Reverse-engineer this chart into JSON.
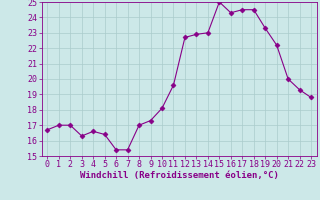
{
  "x": [
    0,
    1,
    2,
    3,
    4,
    5,
    6,
    7,
    8,
    9,
    10,
    11,
    12,
    13,
    14,
    15,
    16,
    17,
    18,
    19,
    20,
    21,
    22,
    23
  ],
  "y": [
    16.7,
    17.0,
    17.0,
    16.3,
    16.6,
    16.4,
    15.4,
    15.4,
    17.0,
    17.3,
    18.1,
    19.6,
    22.7,
    22.9,
    23.0,
    25.0,
    24.3,
    24.5,
    24.5,
    23.3,
    22.2,
    20.0,
    19.3,
    18.8
  ],
  "line_color": "#880088",
  "marker": "D",
  "marker_size": 2.5,
  "bg_color": "#cce8e8",
  "grid_color": "#aacccc",
  "xlabel": "Windchill (Refroidissement éolien,°C)",
  "xlabel_color": "#880088",
  "xlabel_fontsize": 6.5,
  "tick_color": "#880088",
  "tick_fontsize": 6.0,
  "ylim": [
    15,
    25
  ],
  "xlim": [
    -0.5,
    23.5
  ],
  "yticks": [
    15,
    16,
    17,
    18,
    19,
    20,
    21,
    22,
    23,
    24,
    25
  ],
  "xticks": [
    0,
    1,
    2,
    3,
    4,
    5,
    6,
    7,
    8,
    9,
    10,
    11,
    12,
    13,
    14,
    15,
    16,
    17,
    18,
    19,
    20,
    21,
    22,
    23
  ]
}
